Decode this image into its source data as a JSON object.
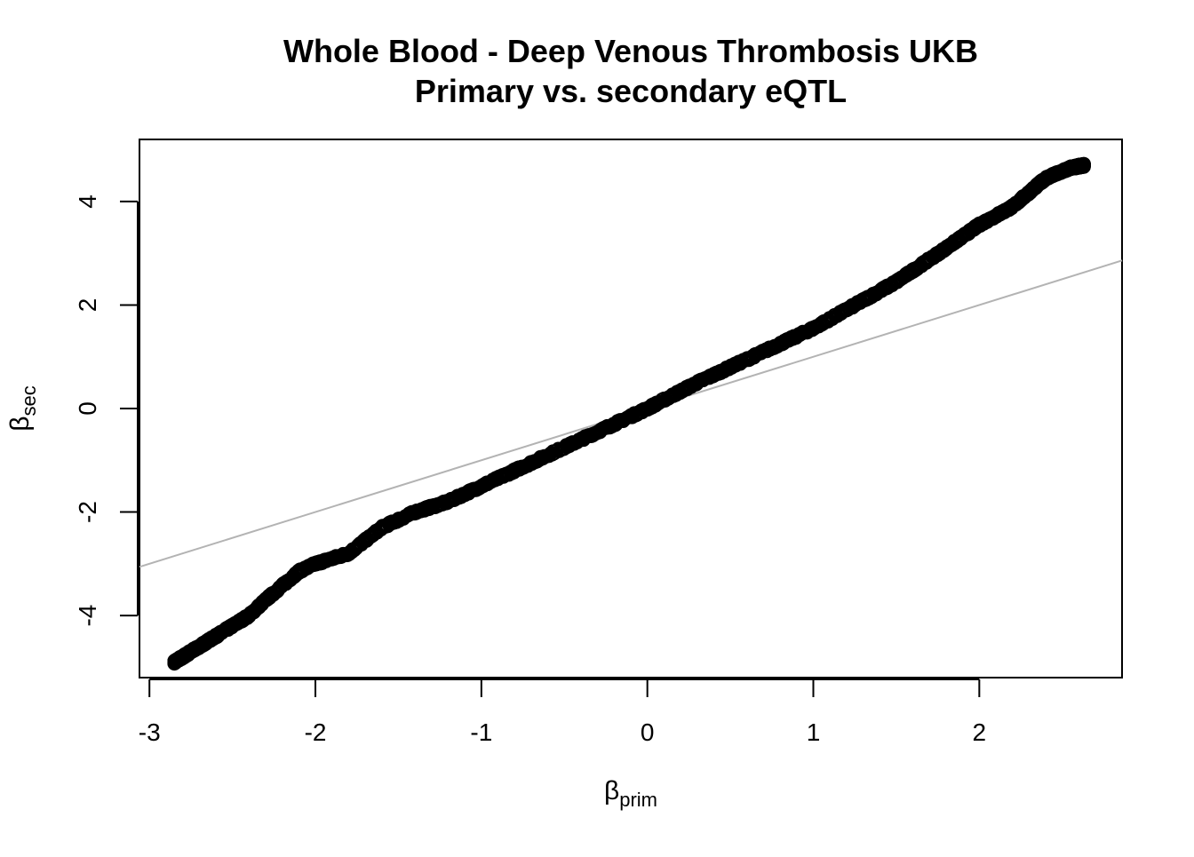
{
  "chart_data": {
    "type": "scatter",
    "title": "Whole Blood - Deep Venous Thrombosis UKB",
    "subtitle": "Primary vs. secondary eQTL",
    "xlabel": {
      "symbol": "β",
      "subscript": "prim"
    },
    "ylabel": {
      "symbol": "β",
      "subscript": "sec"
    },
    "xlim": [
      -3.06,
      2.86
    ],
    "ylim": [
      -5.2,
      5.2
    ],
    "x_ticks": [
      -3,
      -2,
      -1,
      0,
      1,
      2
    ],
    "x_tick_labels": [
      "-3",
      "-2",
      "-1",
      "0",
      "1",
      "2"
    ],
    "y_ticks": [
      -4,
      -2,
      0,
      2,
      4
    ],
    "y_tick_labels": [
      "-4",
      "-2",
      "0",
      "2",
      "4"
    ],
    "grid": false,
    "legend": "none",
    "marker": "open-circle",
    "point_color": "#000000",
    "reference_line": {
      "slope": 1,
      "intercept": 0,
      "color": "#b3b3b3"
    },
    "curve_knots": [
      [
        -2.85,
        -4.9
      ],
      [
        -2.75,
        -4.7
      ],
      [
        -2.6,
        -4.4
      ],
      [
        -2.4,
        -4.0
      ],
      [
        -2.3,
        -3.7
      ],
      [
        -2.1,
        -3.15
      ],
      [
        -2.0,
        -3.0
      ],
      [
        -1.8,
        -2.8
      ],
      [
        -1.6,
        -2.3
      ],
      [
        -1.4,
        -2.0
      ],
      [
        -1.2,
        -1.8
      ],
      [
        -1.0,
        -1.5
      ],
      [
        -0.5,
        -0.75
      ],
      [
        0.0,
        0.0
      ],
      [
        0.3,
        0.5
      ],
      [
        0.5,
        0.8
      ],
      [
        1.0,
        1.55
      ],
      [
        1.5,
        2.45
      ],
      [
        1.8,
        3.1
      ],
      [
        2.0,
        3.55
      ],
      [
        2.2,
        3.9
      ],
      [
        2.4,
        4.45
      ],
      [
        2.55,
        4.65
      ],
      [
        2.63,
        4.7
      ]
    ],
    "n_points": 1800
  }
}
